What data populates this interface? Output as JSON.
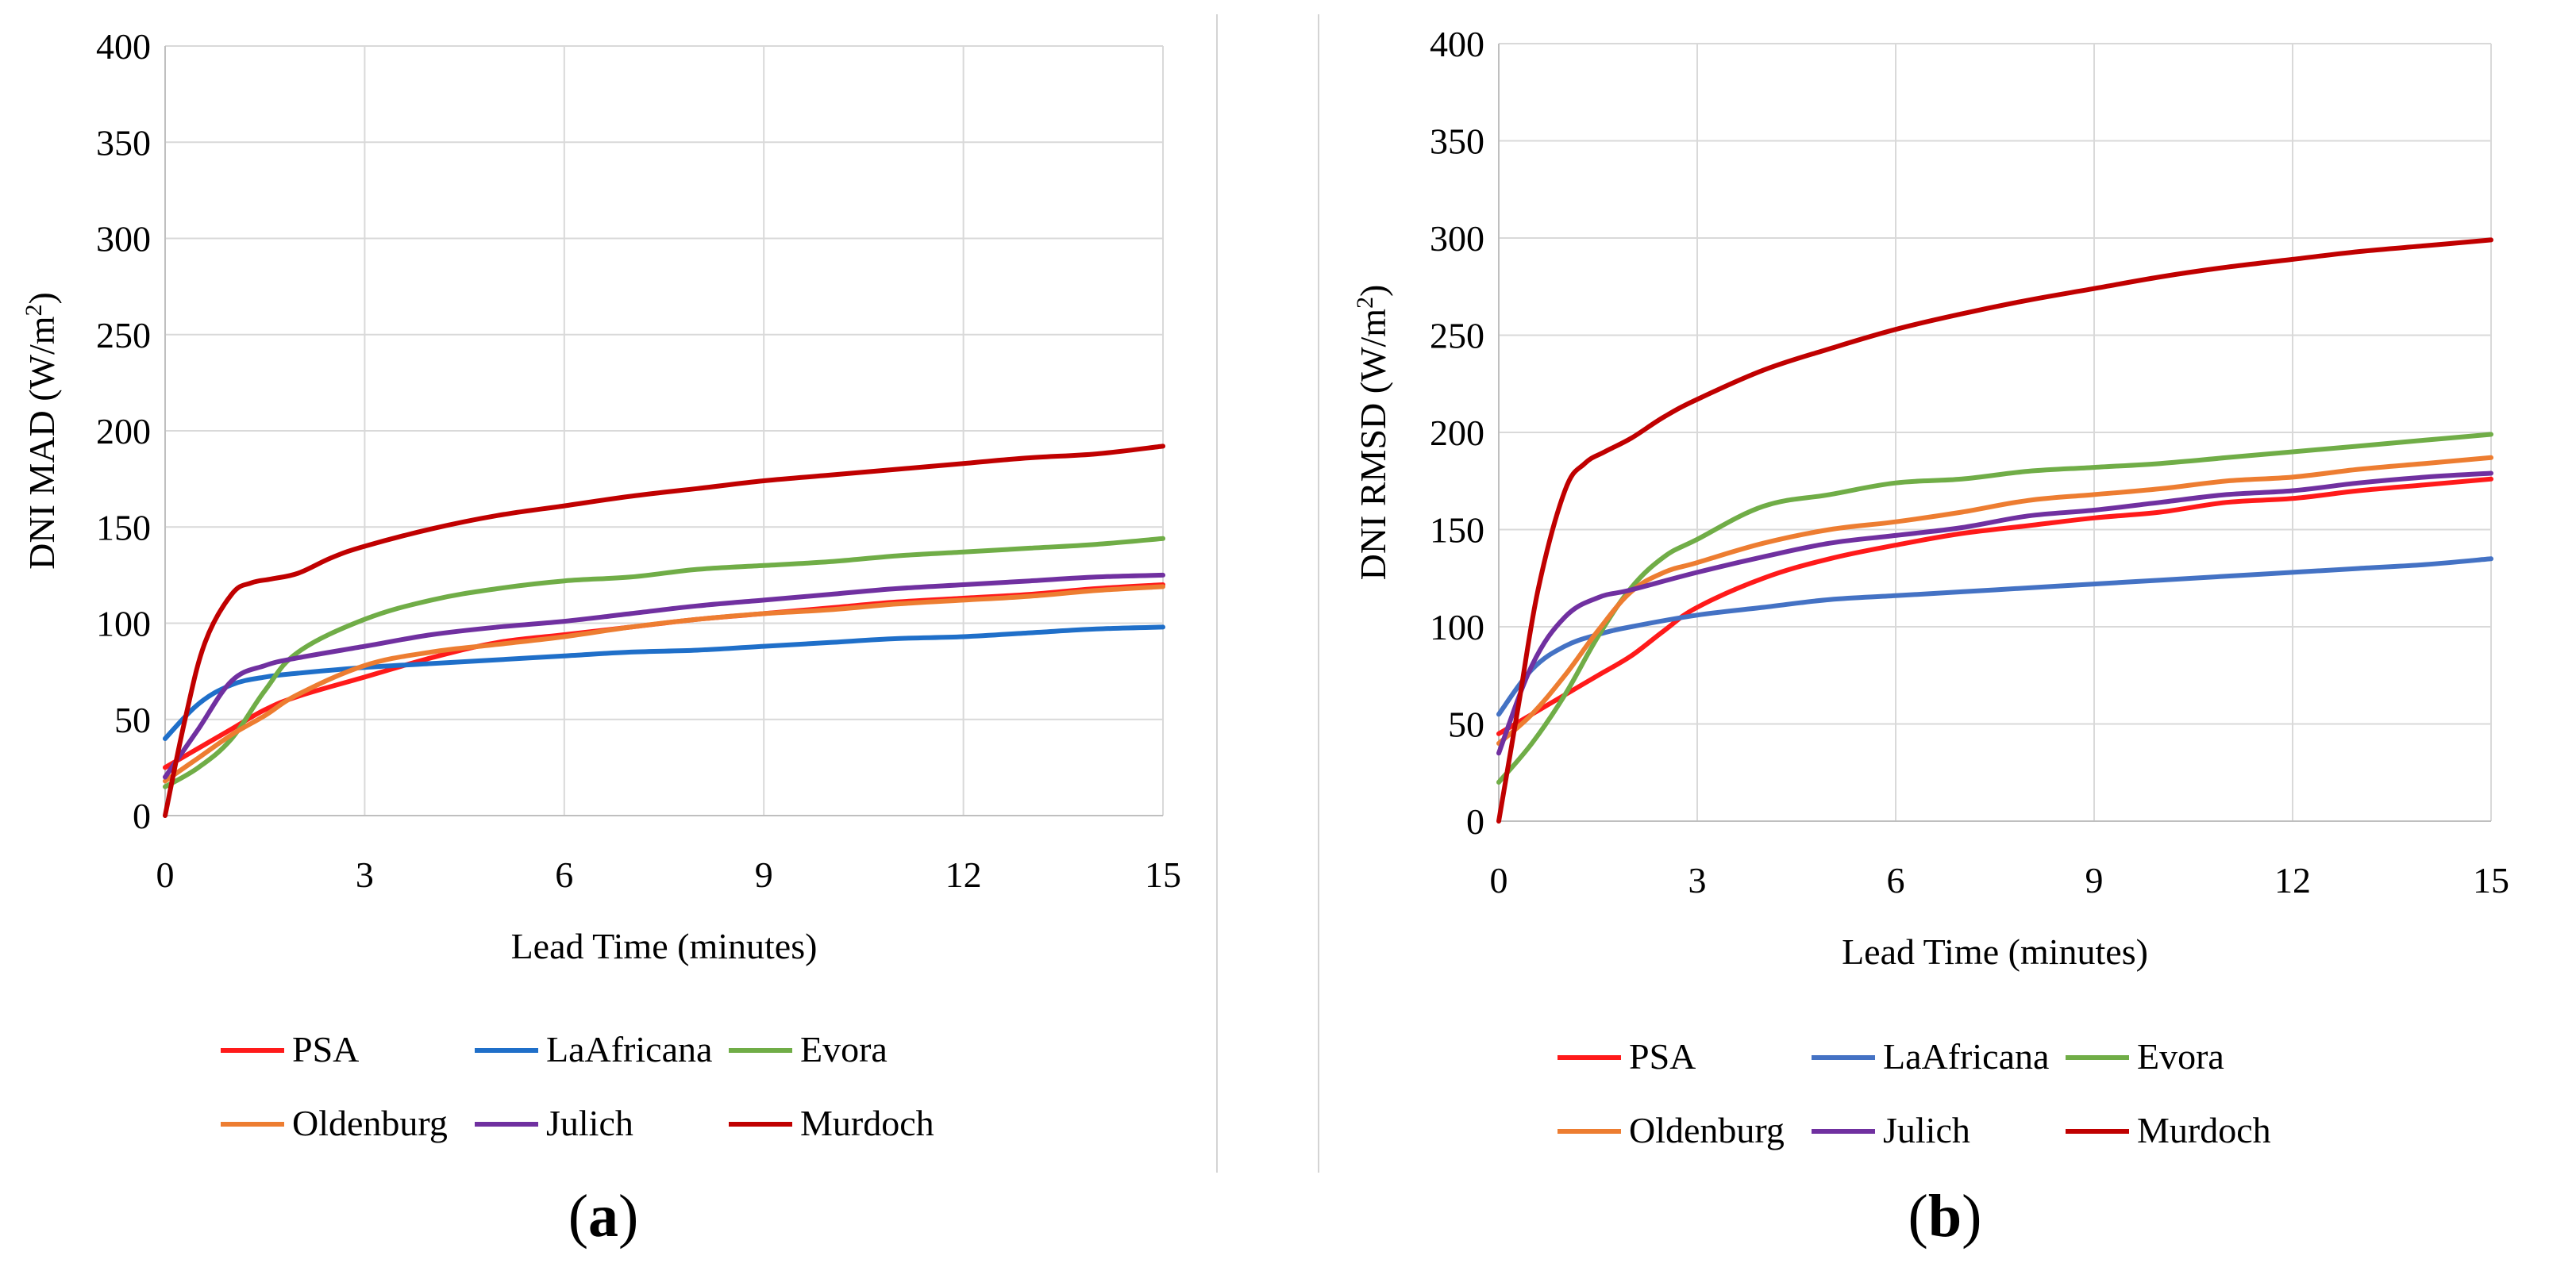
{
  "colors": {
    "PSA": "#ff1a1a",
    "LaAfricana": "#1f6fc9",
    "LaAfricana_b": "#4472c4",
    "Evora": "#70ad47",
    "Oldenburg": "#ed7d31",
    "Julich": "#7030a0",
    "Murdoch": "#c00000",
    "grid": "#d9d9d9"
  },
  "panels": [
    {
      "open": "(",
      "letter": "a",
      "close": ")"
    },
    {
      "open": "(",
      "letter": "b",
      "close": ")"
    }
  ],
  "chart_data": [
    {
      "type": "line",
      "title": "",
      "xlabel": "Lead Time (minutes)",
      "ylabel_main": "DNI MAD (W/m",
      "ylabel_sup": "2",
      "ylabel_close": ")",
      "xlim": [
        0,
        15
      ],
      "ylim": [
        0,
        400
      ],
      "xticks": [
        0,
        3,
        6,
        9,
        12,
        15
      ],
      "yticks": [
        0,
        50,
        100,
        150,
        200,
        250,
        300,
        350,
        400
      ],
      "grid": true,
      "legend_position": "bottom",
      "series": [
        {
          "name": "PSA",
          "color_key": "PSA",
          "x": [
            0,
            0.5,
            1,
            1.5,
            2,
            3,
            4,
            5,
            6,
            7,
            8,
            9,
            10,
            11,
            12,
            13,
            14,
            15
          ],
          "y": [
            25,
            35,
            45,
            55,
            62,
            72,
            82,
            90,
            94,
            98,
            102,
            105,
            108,
            111,
            113,
            115,
            118,
            120
          ]
        },
        {
          "name": "LaAfricana",
          "color_key": "LaAfricana",
          "x": [
            0,
            0.5,
            1,
            1.5,
            2,
            3,
            4,
            5,
            6,
            7,
            8,
            9,
            10,
            11,
            12,
            13,
            14,
            15
          ],
          "y": [
            40,
            58,
            68,
            72,
            74,
            77,
            79,
            81,
            83,
            85,
            86,
            88,
            90,
            92,
            93,
            95,
            97,
            98
          ]
        },
        {
          "name": "Evora",
          "color_key": "Evora",
          "x": [
            0,
            0.5,
            1,
            1.5,
            2,
            3,
            4,
            5,
            6,
            7,
            8,
            9,
            10,
            11,
            12,
            13,
            14,
            15
          ],
          "y": [
            15,
            25,
            40,
            65,
            85,
            102,
            112,
            118,
            122,
            124,
            128,
            130,
            132,
            135,
            137,
            139,
            141,
            144
          ]
        },
        {
          "name": "Oldenburg",
          "color_key": "Oldenburg",
          "x": [
            0,
            0.5,
            1,
            1.5,
            2,
            3,
            4,
            5,
            6,
            7,
            8,
            9,
            10,
            11,
            12,
            13,
            14,
            15
          ],
          "y": [
            18,
            30,
            42,
            52,
            63,
            78,
            85,
            89,
            93,
            98,
            102,
            105,
            107,
            110,
            112,
            114,
            117,
            119
          ]
        },
        {
          "name": "Julich",
          "color_key": "Julich",
          "x": [
            0,
            0.5,
            1,
            1.5,
            2,
            3,
            4,
            5,
            6,
            7,
            8,
            9,
            10,
            11,
            12,
            13,
            14,
            15
          ],
          "y": [
            20,
            45,
            70,
            78,
            82,
            88,
            94,
            98,
            101,
            105,
            109,
            112,
            115,
            118,
            120,
            122,
            124,
            125
          ]
        },
        {
          "name": "Murdoch",
          "color_key": "Murdoch",
          "x": [
            0,
            0.3,
            0.6,
            1,
            1.3,
            1.6,
            2,
            2.5,
            3,
            4,
            5,
            6,
            7,
            8,
            9,
            10,
            11,
            12,
            13,
            14,
            15
          ],
          "y": [
            0,
            50,
            90,
            115,
            121,
            123,
            126,
            134,
            140,
            149,
            156,
            161,
            166,
            170,
            174,
            177,
            180,
            183,
            186,
            188,
            192
          ]
        }
      ]
    },
    {
      "type": "line",
      "title": "",
      "xlabel": "Lead Time (minutes)",
      "ylabel_main": "DNI RMSD (W/m",
      "ylabel_sup": "2",
      "ylabel_close": ")",
      "xlim": [
        0,
        15
      ],
      "ylim": [
        0,
        400
      ],
      "xticks": [
        0,
        3,
        6,
        9,
        12,
        15
      ],
      "yticks": [
        0,
        50,
        100,
        150,
        200,
        250,
        300,
        350,
        400
      ],
      "grid": true,
      "legend_position": "bottom",
      "series": [
        {
          "name": "PSA",
          "color_key": "PSA",
          "x": [
            0,
            0.5,
            1,
            1.5,
            2,
            2.5,
            3,
            4,
            5,
            6,
            7,
            8,
            9,
            10,
            11,
            12,
            13,
            14,
            15
          ],
          "y": [
            45,
            55,
            65,
            75,
            85,
            98,
            110,
            125,
            135,
            142,
            148,
            152,
            156,
            159,
            164,
            166,
            170,
            173,
            176
          ]
        },
        {
          "name": "LaAfricana",
          "color_key": "LaAfricana_b",
          "x": [
            0,
            0.5,
            1,
            1.5,
            2,
            3,
            4,
            5,
            6,
            7,
            8,
            9,
            10,
            11,
            12,
            13,
            14,
            15
          ],
          "y": [
            55,
            78,
            90,
            96,
            100,
            106,
            110,
            114,
            116,
            118,
            120,
            122,
            124,
            126,
            128,
            130,
            132,
            135
          ]
        },
        {
          "name": "Evora",
          "color_key": "Evora",
          "x": [
            0,
            0.5,
            1,
            1.5,
            2,
            2.5,
            3,
            4,
            5,
            6,
            7,
            8,
            9,
            10,
            11,
            12,
            13,
            14,
            15
          ],
          "y": [
            20,
            40,
            65,
            95,
            120,
            136,
            145,
            162,
            168,
            174,
            176,
            180,
            182,
            184,
            187,
            190,
            193,
            196,
            199
          ]
        },
        {
          "name": "Oldenburg",
          "color_key": "Oldenburg",
          "x": [
            0,
            0.5,
            1,
            1.5,
            2,
            2.5,
            3,
            4,
            5,
            6,
            7,
            8,
            9,
            10,
            11,
            12,
            13,
            14,
            15
          ],
          "y": [
            40,
            55,
            75,
            98,
            118,
            128,
            133,
            143,
            150,
            154,
            159,
            165,
            168,
            171,
            175,
            177,
            181,
            184,
            187
          ]
        },
        {
          "name": "Julich",
          "color_key": "Julich",
          "x": [
            0,
            0.5,
            1,
            1.5,
            2,
            3,
            4,
            5,
            6,
            7,
            8,
            9,
            10,
            11,
            12,
            13,
            14,
            15
          ],
          "y": [
            35,
            80,
            105,
            115,
            119,
            128,
            136,
            143,
            147,
            151,
            157,
            160,
            164,
            168,
            170,
            174,
            177,
            179
          ]
        },
        {
          "name": "Murdoch",
          "color_key": "Murdoch",
          "x": [
            0,
            0.3,
            0.6,
            1,
            1.3,
            1.6,
            2,
            2.5,
            3,
            4,
            5,
            6,
            7,
            8,
            9,
            10,
            11,
            12,
            13,
            14,
            15
          ],
          "y": [
            0,
            60,
            120,
            170,
            184,
            190,
            197,
            208,
            217,
            232,
            243,
            253,
            261,
            268,
            274,
            280,
            285,
            289,
            293,
            296,
            299
          ]
        }
      ]
    }
  ]
}
